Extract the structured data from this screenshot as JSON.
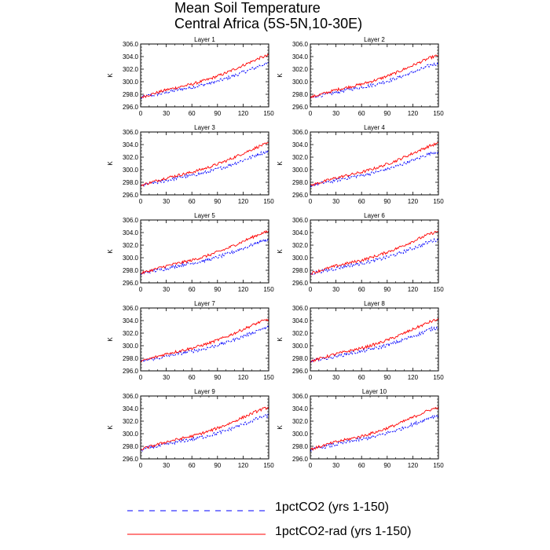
{
  "title_line1": "Mean Soil Temperature",
  "title_line2": "Central Africa (5S-5N,10-30E)",
  "colors": {
    "dashed": "#0000ff",
    "solid": "#ff0000",
    "axis": "#000000"
  },
  "chart_data": {
    "type": "line",
    "layout": "5 rows x 2 columns of panels",
    "ylabel": "K",
    "xlabel": "",
    "xlim": [
      0,
      150
    ],
    "ylim": [
      296.0,
      306.0
    ],
    "xticks": [
      0,
      30,
      60,
      90,
      120,
      150
    ],
    "yticks": [
      "296.0",
      "298.0",
      "300.0",
      "302.0",
      "304.0",
      "306.0"
    ],
    "series": [
      {
        "name": "1pctCO2 (yrs 1-150)",
        "style": "dashed",
        "color": "#0000ff",
        "x": [
          0,
          10,
          20,
          30,
          40,
          50,
          60,
          70,
          80,
          90,
          100,
          110,
          120,
          130,
          140,
          150
        ],
        "values": [
          297.4,
          297.8,
          298.0,
          298.3,
          298.6,
          298.9,
          299.1,
          299.4,
          299.7,
          300.1,
          300.5,
          301.0,
          301.5,
          302.0,
          302.6,
          302.9
        ]
      },
      {
        "name": "1pctCO2-rad (yrs 1-150)",
        "style": "solid",
        "color": "#ff0000",
        "x": [
          0,
          10,
          20,
          30,
          40,
          50,
          60,
          70,
          80,
          90,
          100,
          110,
          120,
          130,
          140,
          150
        ],
        "values": [
          297.5,
          297.9,
          298.3,
          298.7,
          299.0,
          299.3,
          299.6,
          300.0,
          300.4,
          300.9,
          301.4,
          302.0,
          302.6,
          303.2,
          303.8,
          304.2
        ]
      }
    ],
    "panels": [
      {
        "title": "Layer 1"
      },
      {
        "title": "Layer 2"
      },
      {
        "title": "Layer 3"
      },
      {
        "title": "Layer 4"
      },
      {
        "title": "Layer 5"
      },
      {
        "title": "Layer 6"
      },
      {
        "title": "Layer 7"
      },
      {
        "title": "Layer 8"
      },
      {
        "title": "Layer 9"
      },
      {
        "title": "Layer 10"
      }
    ]
  },
  "legend": [
    {
      "label": "1pctCO2 (yrs 1-150)",
      "style": "dashed",
      "color": "#0000ff"
    },
    {
      "label": "1pctCO2-rad (yrs 1-150)",
      "style": "solid",
      "color": "#ff0000"
    }
  ]
}
